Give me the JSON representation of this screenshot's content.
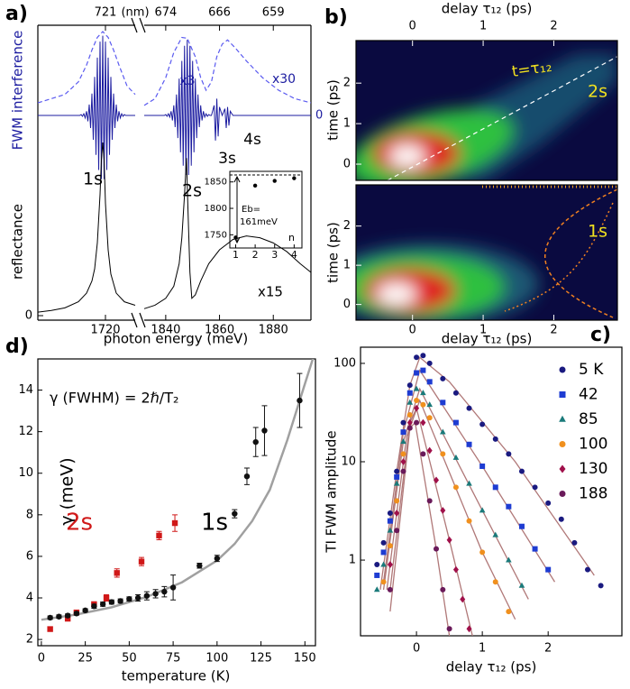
{
  "chart_data": [
    {
      "type": "line",
      "label": "a)",
      "xlabel": "photon energy (meV)",
      "x2label": "(nm)",
      "x_segments": [
        {
          "xlim": [
            1695,
            1731
          ],
          "xticks": [
            1720
          ]
        },
        {
          "xlim": [
            1832,
            1894
          ],
          "xticks": [
            1840,
            1860,
            1880
          ]
        }
      ],
      "x2ticks": [
        {
          "value": 1720,
          "label": "721"
        },
        {
          "value": 1840,
          "label": "674"
        },
        {
          "value": 1860,
          "label": "666"
        },
        {
          "value": 1880,
          "label": "659"
        }
      ],
      "annotations": [
        "x3",
        "x30",
        "1s",
        "2s",
        "3s",
        "4s",
        "x15"
      ],
      "panels": [
        {
          "ylabel": "FWM interference",
          "color": "#1c1ca0",
          "ylim": [
            -1,
            1
          ],
          "yticks": [
            0
          ],
          "series": [
            {
              "color": "#1c1ca0",
              "x": [
                1695,
                1710,
                1710.5,
                1711,
                1711.5,
                1712,
                1712.5,
                1713,
                1713.5,
                1714,
                1714.5,
                1715,
                1715.5,
                1716,
                1716.5,
                1717,
                1717.5,
                1718,
                1718.5,
                1719,
                1719.5,
                1720,
                1720.5,
                1721,
                1721.5,
                1722,
                1722.5,
                1723,
                1723.5,
                1724,
                1724.5,
                1725,
                1725.5,
                1726,
                1726.5,
                1727,
                1727.5,
                1728,
                1731,
                null,
                1832,
                1839,
                1839.5,
                1840,
                1840.5,
                1841,
                1841.5,
                1842,
                1842.5,
                1843,
                1843.5,
                1844,
                1844.5,
                1845,
                1845.5,
                1846,
                1846.5,
                1847,
                1847.5,
                1848,
                1848.5,
                1849,
                1849.5,
                1850,
                1850.5,
                1851,
                1851.5,
                1852,
                1852.5,
                1853,
                1853.5,
                1854,
                1854.5,
                1855,
                1855.5,
                1856,
                1856.5,
                1857,
                1858,
                1858.5,
                1859,
                1859.5,
                1860,
                1861,
                1862,
                1862.5,
                1863,
                1863.5,
                1864,
                1865,
                1894
              ],
              "values": [
                0,
                0,
                0,
                0.01,
                -0.01,
                0.02,
                -0.03,
                0.05,
                -0.07,
                0.13,
                -0.15,
                0.26,
                -0.29,
                0.46,
                -0.47,
                0.69,
                -0.65,
                0.88,
                -0.76,
                0.95,
                -0.76,
                0.88,
                -0.65,
                0.69,
                -0.47,
                0.46,
                -0.29,
                0.26,
                -0.15,
                0.13,
                -0.07,
                0.05,
                -0.03,
                0.02,
                -0.01,
                0.01,
                0,
                0,
                0,
                null,
                0,
                0,
                0,
                0.01,
                -0.01,
                0.02,
                -0.02,
                0.05,
                -0.06,
                0.12,
                -0.14,
                0.25,
                -0.27,
                0.44,
                -0.44,
                0.65,
                -0.6,
                0.83,
                -0.71,
                0.9,
                -0.71,
                0.83,
                -0.6,
                0.65,
                -0.44,
                0.44,
                -0.27,
                0.25,
                -0.14,
                0.12,
                -0.06,
                0.05,
                -0.02,
                0.02,
                -0.01,
                0.01,
                0,
                0,
                0.12,
                -0.3,
                0.2,
                -0.25,
                0.1,
                0,
                0.08,
                -0.15,
                0.1,
                -0.12,
                0.05,
                0,
                0
              ]
            },
            {
              "color": "#5a5af0",
              "dash": true,
              "x": [
                1695,
                1705,
                1710,
                1713,
                1715,
                1717,
                1719,
                1721,
                1723,
                1725,
                1728,
                1731,
                null,
                1832,
                1836,
                1840,
                1843,
                1846,
                1848,
                1851,
                1853,
                1855,
                1857,
                1859,
                1861,
                1863,
                1866,
                1870,
                1876,
                1882,
                1888,
                1894
              ],
              "values": [
                0.15,
                0.25,
                0.4,
                0.6,
                0.78,
                0.93,
                1.0,
                0.93,
                0.78,
                0.6,
                0.35,
                0.25,
                null,
                0.12,
                0.2,
                0.45,
                0.75,
                0.93,
                0.92,
                0.7,
                0.45,
                0.3,
                0.4,
                0.7,
                0.85,
                0.9,
                0.8,
                0.65,
                0.45,
                0.3,
                0.2,
                0.15
              ]
            }
          ]
        },
        {
          "ylabel": "reflectance",
          "color": "#000000",
          "ylim": [
            0,
            1
          ],
          "yticks": [
            0
          ],
          "series": [
            {
              "color": "#000000",
              "x": [
                1695,
                1700,
                1705,
                1710,
                1713,
                1715,
                1716,
                1717,
                1718,
                1718.5,
                1719,
                1719.5,
                1720,
                1721,
                1722,
                1724,
                1727,
                1731,
                null,
                1832,
                1836,
                1840,
                1843,
                1845,
                1846,
                1847,
                1847.7,
                1848.3,
                1849,
                1849.7,
                1851,
                1853,
                1856,
                1860,
                1865,
                1870,
                1875,
                1880,
                1885,
                1890,
                1894
              ],
              "values": [
                0.02,
                0.03,
                0.045,
                0.08,
                0.13,
                0.2,
                0.27,
                0.42,
                0.7,
                0.9,
                1.0,
                0.9,
                0.65,
                0.38,
                0.24,
                0.13,
                0.08,
                0.06,
                null,
                0.04,
                0.06,
                0.1,
                0.17,
                0.3,
                0.45,
                0.7,
                0.91,
                0.6,
                0.25,
                0.1,
                0.12,
                0.2,
                0.3,
                0.38,
                0.44,
                0.46,
                0.45,
                0.42,
                0.37,
                0.3,
                0.25
              ]
            }
          ]
        }
      ],
      "inset": {
        "xlabel": "n",
        "annotations": [
          "Eb=",
          "161meV"
        ],
        "xlim": [
          0.7,
          4.4
        ],
        "xticks": [
          1,
          2,
          3,
          4
        ],
        "ylim": [
          1725,
          1870
        ],
        "yticks": [
          1750,
          1800,
          1850
        ],
        "x": [
          1,
          2,
          3,
          4
        ],
        "values": [
          1745,
          1843,
          1852,
          1857
        ]
      }
    },
    {
      "type": "heatmap",
      "label": "b)",
      "xlabel": "delay τ₁₂ (ps)",
      "xlim": [
        -0.8,
        2.9
      ],
      "xticks": [
        0,
        1,
        2
      ],
      "panels": [
        {
          "ylabel": "time (ps)",
          "ylim": [
            -0.4,
            3.05
          ],
          "yticks": [
            0,
            1,
            2
          ],
          "annotations": [
            "t=τ₁₂",
            "2s"
          ]
        },
        {
          "ylabel": "time (ps)",
          "ylim": [
            -0.4,
            3.05
          ],
          "yticks": [
            0,
            1,
            2
          ],
          "annotations": [
            "1s"
          ]
        }
      ]
    },
    {
      "type": "scatter",
      "label": "c)",
      "xlabel": "delay τ₁₂ (ps)",
      "ylabel": "TI FWM amplitude",
      "log_y": true,
      "legend": "right",
      "xlim": [
        -0.85,
        3.12
      ],
      "xticks": [
        0,
        1,
        2
      ],
      "ylim": [
        0.17,
        146
      ],
      "yticks": [
        1,
        10,
        100
      ],
      "series": [
        {
          "name": "5 K",
          "color": "#1a1a80",
          "marker": "circle",
          "x": [
            -0.6,
            -0.5,
            -0.4,
            -0.3,
            -0.2,
            -0.1,
            0,
            0.1,
            0.2,
            0.4,
            0.6,
            0.8,
            1.0,
            1.2,
            1.4,
            1.6,
            1.8,
            2.0,
            2.2,
            2.4,
            2.6,
            2.8
          ],
          "values": [
            0.9,
            1.5,
            3,
            8,
            25,
            60,
            115,
            120,
            100,
            70,
            50,
            35,
            24,
            17,
            12,
            8,
            5.5,
            3.8,
            2.6,
            1.5,
            0.8,
            0.55
          ]
        },
        {
          "name": "42",
          "color": "#1e3cd2",
          "marker": "square",
          "x": [
            -0.6,
            -0.5,
            -0.4,
            -0.3,
            -0.2,
            -0.1,
            0,
            0.1,
            0.2,
            0.4,
            0.6,
            0.8,
            1.0,
            1.2,
            1.4,
            1.6,
            1.8,
            2.0
          ],
          "values": [
            0.7,
            1.2,
            2.5,
            7,
            20,
            50,
            80,
            85,
            65,
            40,
            25,
            15,
            9,
            5.5,
            3.5,
            2.2,
            1.3,
            0.8
          ]
        },
        {
          "name": "85",
          "color": "#1a7a7a",
          "marker": "triangle",
          "x": [
            -0.6,
            -0.5,
            -0.4,
            -0.3,
            -0.2,
            -0.1,
            0,
            0.1,
            0.2,
            0.4,
            0.6,
            0.8,
            1.0,
            1.2,
            1.4,
            1.6
          ],
          "values": [
            0.5,
            0.9,
            2,
            6,
            16,
            40,
            55,
            50,
            38,
            20,
            11,
            6,
            3.2,
            1.8,
            1,
            0.55
          ]
        },
        {
          "name": "100",
          "color": "#f0901e",
          "marker": "circle",
          "x": [
            -0.5,
            -0.4,
            -0.3,
            -0.2,
            -0.1,
            0,
            0.1,
            0.2,
            0.4,
            0.6,
            0.8,
            1.0,
            1.2,
            1.4
          ],
          "values": [
            0.6,
            1.4,
            4,
            12,
            30,
            42,
            38,
            28,
            12,
            5.5,
            2.5,
            1.2,
            0.6,
            0.3
          ]
        },
        {
          "name": "130",
          "color": "#a0104a",
          "marker": "diamond",
          "x": [
            -0.4,
            -0.3,
            -0.2,
            -0.1,
            0,
            0.1,
            0.2,
            0.3,
            0.4,
            0.5,
            0.6,
            0.7,
            0.8
          ],
          "values": [
            0.9,
            3,
            10,
            25,
            35,
            25,
            13,
            6.5,
            3.2,
            1.6,
            0.8,
            0.4,
            0.2
          ]
        },
        {
          "name": "188",
          "color": "#6a1a5a",
          "marker": "circle",
          "x": [
            -0.4,
            -0.3,
            -0.2,
            -0.1,
            0,
            0.1,
            0.2,
            0.3,
            0.4,
            0.5
          ],
          "values": [
            0.5,
            2,
            8,
            22,
            25,
            12,
            4,
            1.3,
            0.5,
            0.2
          ]
        }
      ],
      "fits": [
        {
          "color": "#b07878",
          "x": [
            -0.55,
            -0.3,
            -0.1,
            0.05,
            0.5,
            1.5,
            2.7
          ],
          "values": [
            0.5,
            8,
            60,
            115,
            65,
            10,
            0.7
          ]
        },
        {
          "color": "#b07878",
          "x": [
            -0.5,
            -0.2,
            0.05,
            1,
            2.1
          ],
          "values": [
            0.6,
            20,
            85,
            9,
            0.6
          ]
        },
        {
          "color": "#b07878",
          "x": [
            -0.5,
            -0.2,
            0.05,
            1,
            1.7
          ],
          "values": [
            0.5,
            16,
            55,
            3.2,
            0.4
          ]
        },
        {
          "color": "#b07878",
          "x": [
            -0.45,
            -0.15,
            0.05,
            1,
            1.5
          ],
          "values": [
            0.5,
            18,
            42,
            1.2,
            0.25
          ]
        },
        {
          "color": "#b07878",
          "x": [
            -0.4,
            -0.1,
            0,
            0.5,
            0.85
          ],
          "values": [
            0.5,
            25,
            35,
            1.6,
            0.17
          ]
        },
        {
          "color": "#b07878",
          "x": [
            -0.4,
            -0.1,
            -0.02,
            0.3,
            0.5
          ],
          "values": [
            0.3,
            22,
            25,
            1.3,
            0.17
          ]
        }
      ]
    },
    {
      "type": "scatter",
      "label": "d)",
      "annotation": "γ (FWHM) = 2ℏ/T₂",
      "xlabel": "temperature (K)",
      "ylabel": "γ (meV)",
      "xlim": [
        -2,
        156
      ],
      "xticks": [
        0,
        25,
        50,
        75,
        100,
        125,
        150
      ],
      "ylim": [
        1.7,
        15.5
      ],
      "yticks": [
        2,
        4,
        6,
        8,
        10,
        12,
        14
      ],
      "series": [
        {
          "name": "2s",
          "color": "#d01818",
          "marker": "square",
          "x": [
            5,
            15,
            20,
            30,
            37,
            43,
            57,
            67,
            76
          ],
          "values": [
            2.5,
            3.0,
            3.3,
            3.7,
            4.0,
            5.2,
            5.75,
            7.0,
            7.6
          ],
          "errors": [
            0.1,
            0.1,
            0.1,
            0.1,
            0.15,
            0.2,
            0.2,
            0.2,
            0.4
          ]
        },
        {
          "name": "1s",
          "color": "#111111",
          "marker": "circle",
          "x": [
            5,
            10,
            15,
            20,
            25,
            30,
            35,
            40,
            45,
            50,
            55,
            60,
            65,
            70,
            75,
            90,
            100,
            110,
            117,
            122,
            127,
            147
          ],
          "values": [
            3.05,
            3.1,
            3.15,
            3.25,
            3.4,
            3.6,
            3.7,
            3.8,
            3.85,
            3.95,
            4.0,
            4.1,
            4.2,
            4.3,
            4.5,
            5.55,
            5.9,
            8.05,
            9.85,
            11.5,
            12.05,
            13.5
          ],
          "errors": [
            0.08,
            0.08,
            0.08,
            0.08,
            0.08,
            0.1,
            0.1,
            0.1,
            0.1,
            0.1,
            0.15,
            0.2,
            0.2,
            0.25,
            0.6,
            0.12,
            0.15,
            0.2,
            0.4,
            0.7,
            1.2,
            1.3
          ]
        }
      ],
      "fits": [
        {
          "color": "#a0a0a0",
          "x": [
            0,
            20,
            40,
            60,
            80,
            100,
            110,
            120,
            130,
            140,
            150,
            156
          ],
          "values": [
            2.95,
            3.2,
            3.55,
            4.05,
            4.75,
            5.8,
            6.6,
            7.7,
            9.2,
            11.6,
            14.3,
            15.9
          ]
        }
      ]
    }
  ]
}
